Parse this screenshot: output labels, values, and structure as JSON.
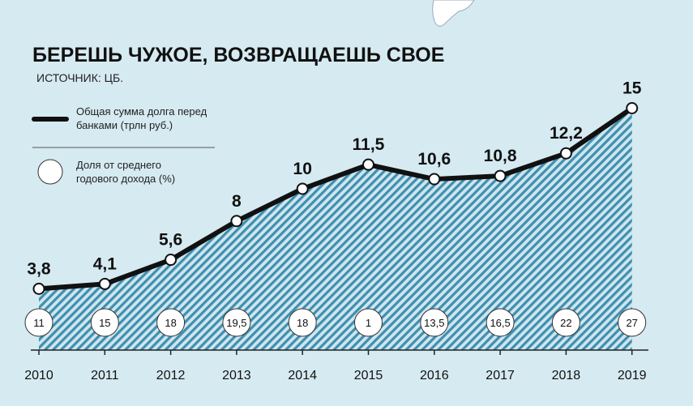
{
  "chart_data": {
    "type": "line",
    "title": "БЕРЕШЬ ЧУЖОЕ, ВОЗВРАЩАЕШЬ СВОЕ",
    "subtitle": "ИСТОЧНИК: ЦБ.",
    "categories": [
      "2010",
      "2011",
      "2012",
      "2013",
      "2014",
      "2015",
      "2016",
      "2017",
      "2018",
      "2019"
    ],
    "series": [
      {
        "name": "Общая сумма долга перед банками (трлн руб.)",
        "color": "#111111",
        "values": [
          3.8,
          4.1,
          5.6,
          8,
          10,
          11.5,
          10.6,
          10.8,
          12.2,
          15
        ],
        "value_labels": [
          "3,8",
          "4,1",
          "5,6",
          "8",
          "10",
          "11,5",
          "10,6",
          "10,8",
          "12,2",
          "15"
        ]
      },
      {
        "name": "Доля от среднего годового дохода (%)",
        "color": "#ffffff",
        "values": [
          11,
          15,
          18,
          19.5,
          18,
          1,
          13.5,
          16.5,
          22,
          27
        ],
        "value_labels": [
          "11",
          "15",
          "18",
          "19,5",
          "18",
          "1",
          "13,5",
          "16,5",
          "22",
          "27"
        ]
      }
    ],
    "area_color": "#3f8fb0"
  }
}
